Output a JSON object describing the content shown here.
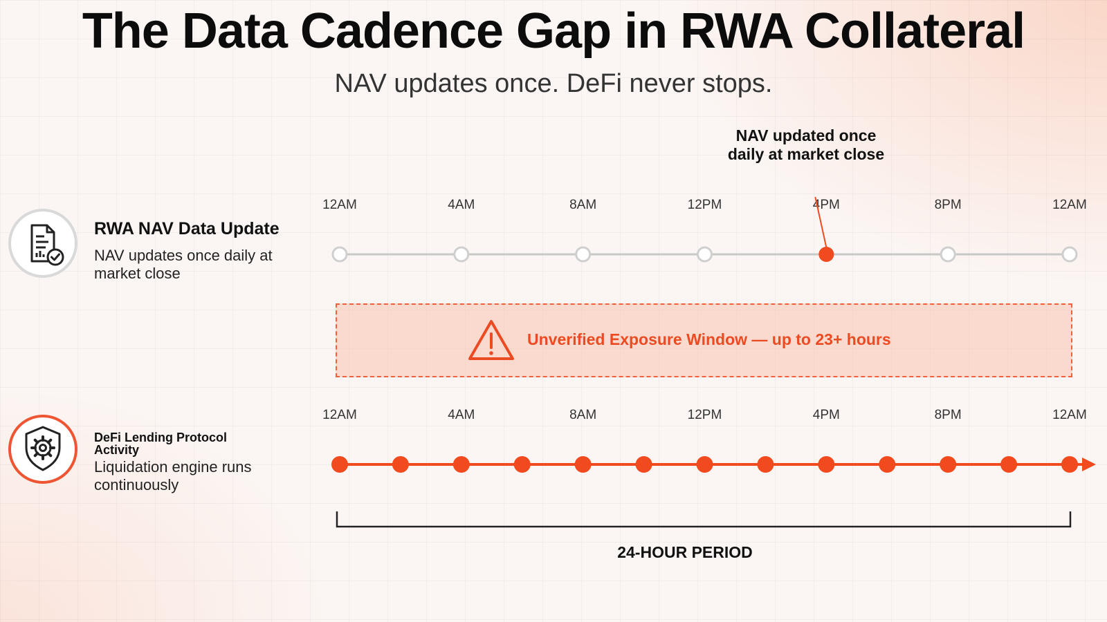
{
  "header": {
    "title": "The Data Cadence Gap in RWA Collateral",
    "subtitle": "NAV updates once. DeFi never stops."
  },
  "nav_row": {
    "icon": "document-check-icon",
    "title": "RWA NAV Data Update",
    "description": "NAV updates once daily at market close",
    "time_labels": [
      "12AM",
      "4AM",
      "8AM",
      "12PM",
      "4PM",
      "8PM",
      "12AM"
    ],
    "update_index": 4,
    "callout": "NAV updated once daily at market close"
  },
  "exposure": {
    "icon": "warning-triangle-icon",
    "label": "Unverified Exposure Window — up to 23+ hours"
  },
  "defi_row": {
    "icon": "shield-gear-icon",
    "title": "DeFi Lending Protocol Activity",
    "description": "Liquidation engine runs continuously",
    "time_labels": [
      "12AM",
      "4AM",
      "8AM",
      "12PM",
      "4PM",
      "8PM",
      "12AM"
    ],
    "event_count": 13
  },
  "period": {
    "label": "24-HOUR PERIOD"
  },
  "colors": {
    "accent": "#f04a1e",
    "inactive_dot": "#cfcfcf",
    "line_gray": "#c8c8c8"
  }
}
